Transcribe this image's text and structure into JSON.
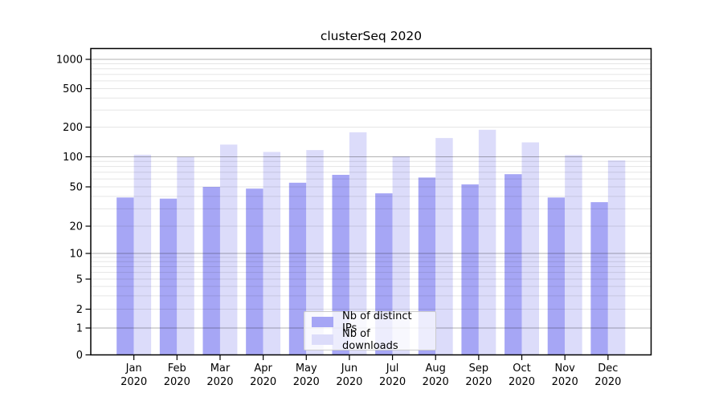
{
  "chart_data": {
    "type": "bar",
    "title": "clusterSeq 2020",
    "categories": [
      "Jan",
      "Feb",
      "Mar",
      "Apr",
      "May",
      "Jun",
      "Jul",
      "Aug",
      "Sep",
      "Oct",
      "Nov",
      "Dec"
    ],
    "x_tick_second_line": "2020",
    "series": [
      {
        "name": "Nb of distinct IPs",
        "color": "#a6a6f5",
        "values": [
          39,
          38,
          50,
          48,
          55,
          66,
          43,
          62,
          53,
          67,
          39,
          35
        ]
      },
      {
        "name": "Nb of downloads",
        "color": "#dcdcfa",
        "values": [
          105,
          100,
          133,
          112,
          117,
          177,
          101,
          155,
          188,
          140,
          104,
          92
        ]
      }
    ],
    "yscale": "symlog",
    "y_ticks": [
      0,
      1,
      2,
      5,
      10,
      20,
      50,
      100,
      200,
      500,
      1000
    ],
    "ylim": [
      0,
      1260
    ],
    "xlabel": "",
    "ylabel": "",
    "grid": true,
    "legend_position": "lower center"
  },
  "style": {
    "major_grid_color": "#b3b3b3",
    "minor_grid_color": "#e6e6e6",
    "spine_color": "#000000",
    "text_color": "#000000"
  }
}
